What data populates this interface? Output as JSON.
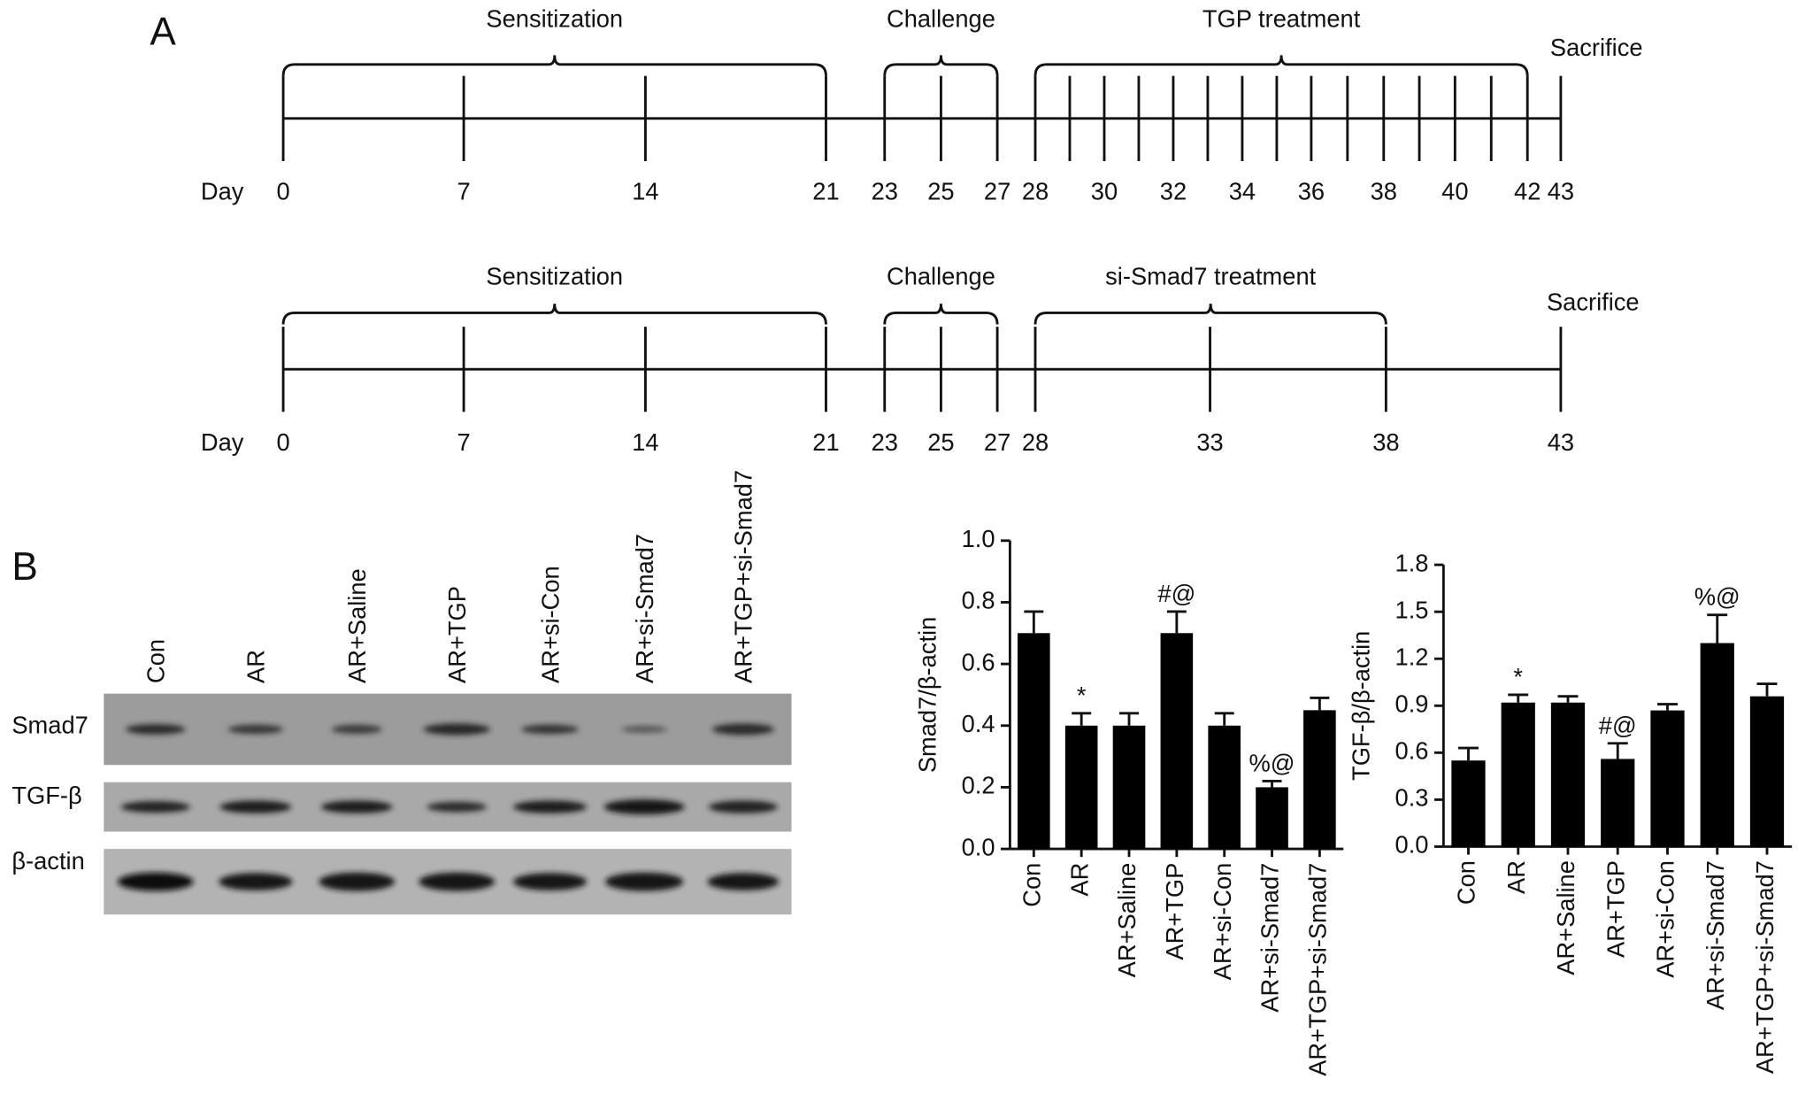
{
  "panel_a": {
    "label": "A",
    "timelines": [
      {
        "day_label": "Day",
        "days": [
          0,
          7,
          14,
          21,
          23,
          25,
          27,
          28,
          30,
          32,
          34,
          36,
          38,
          40,
          42,
          43
        ],
        "phases": [
          "Sensitization",
          "Challenge",
          "TGP treatment"
        ],
        "end_label": "Sacrifice"
      },
      {
        "day_label": "Day",
        "days": [
          0,
          7,
          14,
          21,
          23,
          25,
          27,
          28,
          33,
          38,
          43
        ],
        "phases": [
          "Sensitization",
          "Challenge",
          "si-Smad7 treatment"
        ],
        "end_label": "Sacrifice"
      }
    ]
  },
  "panel_b": {
    "label": "B",
    "blot": {
      "lanes": [
        "Con",
        "AR",
        "AR+Saline",
        "AR+TGP",
        "AR+si-Con",
        "AR+si-Smad7",
        "AR+TGP+si-Smad7"
      ],
      "rows": [
        "Smad7",
        "TGF-β",
        "β-actin"
      ]
    }
  },
  "chart_data": [
    {
      "type": "bar",
      "ylabel": "Smad7/β-actin",
      "categories": [
        "Con",
        "AR",
        "AR+Saline",
        "AR+TGP",
        "AR+si-Con",
        "AR+si-Smad7",
        "AR+TGP+si-Smad7"
      ],
      "values": [
        0.7,
        0.4,
        0.4,
        0.7,
        0.4,
        0.2,
        0.45
      ],
      "errors": [
        0.07,
        0.04,
        0.04,
        0.07,
        0.04,
        0.02,
        0.04
      ],
      "annotations": [
        null,
        "*",
        null,
        "#@",
        null,
        "%@",
        null
      ],
      "color": "#000000",
      "ylim": [
        0,
        1.0
      ],
      "yticks": [
        {
          "value": 0,
          "label": "0.0"
        },
        0.2,
        0.4,
        0.6,
        0.8,
        {
          "value": 1.0,
          "label": "1.0"
        }
      ]
    },
    {
      "type": "bar",
      "ylabel": "TGF-β/β-actin",
      "categories": [
        "Con",
        "AR",
        "AR+Saline",
        "AR+TGP",
        "AR+si-Con",
        "AR+si-Smad7",
        "AR+TGP+si-Smad7"
      ],
      "values": [
        0.55,
        0.92,
        0.92,
        0.56,
        0.87,
        1.3,
        0.96
      ],
      "errors": [
        0.08,
        0.05,
        0.04,
        0.1,
        0.04,
        0.18,
        0.08
      ],
      "annotations": [
        null,
        "*",
        null,
        "#@",
        null,
        "%@",
        null
      ],
      "color": "#000000",
      "ylim": [
        0,
        1.8
      ],
      "yticks": [
        {
          "value": 0,
          "label": "0.0"
        },
        0.3,
        0.6,
        0.9,
        1.2,
        1.5,
        1.8
      ]
    }
  ]
}
